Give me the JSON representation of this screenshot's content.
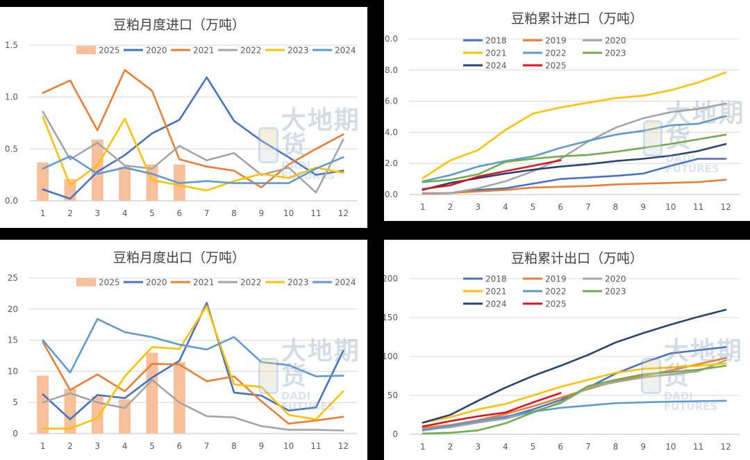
{
  "watermark": {
    "cn": "大地期货",
    "en": "DADI FUTURES"
  },
  "chart_data": [
    {
      "type": "bar+line",
      "title": "豆粕月度进口（万吨）",
      "categories": [
        "1",
        "2",
        "3",
        "4",
        "5",
        "6",
        "7",
        "8",
        "9",
        "10",
        "11",
        "12"
      ],
      "ylim": [
        0,
        1.5
      ],
      "yticks": [
        "0.0",
        "0.5",
        "1.0",
        "1.5"
      ],
      "legend_position": "top",
      "series": [
        {
          "name": "2025",
          "kind": "bar",
          "color": "#f7c09a",
          "values": [
            0.37,
            0.21,
            0.59,
            0.33,
            0.35,
            0.35,
            null,
            null,
            null,
            null,
            null,
            null
          ]
        },
        {
          "name": "2020",
          "kind": "line",
          "color": "#4472c4",
          "values": [
            0.11,
            0.02,
            0.28,
            0.44,
            0.65,
            0.78,
            1.19,
            0.77,
            0.58,
            0.42,
            0.25,
            0.29
          ]
        },
        {
          "name": "2021",
          "kind": "line",
          "color": "#ed7d31",
          "values": [
            1.04,
            1.16,
            0.68,
            1.26,
            1.06,
            0.4,
            0.33,
            0.29,
            0.13,
            0.35,
            0.5,
            0.64
          ]
        },
        {
          "name": "2022",
          "kind": "line",
          "color": "#a5a5a5",
          "values": [
            0.86,
            0.4,
            0.56,
            0.34,
            0.31,
            0.53,
            0.39,
            0.46,
            0.25,
            0.32,
            0.08,
            0.59
          ]
        },
        {
          "name": "2023",
          "kind": "line",
          "color": "#ffc000",
          "values": [
            0.81,
            0.15,
            0.34,
            0.79,
            0.2,
            0.15,
            0.1,
            0.19,
            0.26,
            0.22,
            0.32,
            0.27
          ]
        },
        {
          "name": "2024",
          "kind": "line",
          "color": "#5b9bd5",
          "values": [
            0.31,
            0.43,
            0.26,
            0.32,
            0.26,
            0.17,
            0.19,
            0.17,
            0.17,
            0.17,
            0.31,
            0.42
          ]
        }
      ]
    },
    {
      "type": "line",
      "title": "豆粕累计进口（万吨）",
      "categories": [
        "1",
        "2",
        "3",
        "4",
        "5",
        "6",
        "7",
        "8",
        "9",
        "10",
        "11",
        "12"
      ],
      "ylim": [
        0,
        10
      ],
      "yticks": [
        "0.0",
        "2.0",
        "4.0",
        "6.0",
        "8.0",
        "10.0"
      ],
      "legend_position": "top",
      "series": [
        {
          "name": "2018",
          "color": "#4472c4",
          "values": [
            0.05,
            0.1,
            0.3,
            0.4,
            0.7,
            1.0,
            1.1,
            1.2,
            1.35,
            1.85,
            2.3,
            2.3
          ]
        },
        {
          "name": "2019",
          "color": "#ed7d31",
          "values": [
            0.05,
            0.1,
            0.2,
            0.3,
            0.45,
            0.5,
            0.55,
            0.65,
            0.7,
            0.75,
            0.8,
            0.95
          ]
        },
        {
          "name": "2020",
          "color": "#a5a5a5",
          "values": [
            0.1,
            0.1,
            0.4,
            0.85,
            1.5,
            2.3,
            3.4,
            4.3,
            4.9,
            5.3,
            5.5,
            5.85
          ]
        },
        {
          "name": "2021",
          "color": "#ffc000",
          "values": [
            1.05,
            2.2,
            2.85,
            4.15,
            5.2,
            5.6,
            5.9,
            6.2,
            6.35,
            6.7,
            7.2,
            7.85
          ]
        },
        {
          "name": "2022",
          "color": "#5b9bd5",
          "values": [
            0.85,
            1.25,
            1.8,
            2.15,
            2.45,
            3.0,
            3.45,
            3.85,
            4.1,
            4.45,
            4.55,
            5.05
          ]
        },
        {
          "name": "2023",
          "color": "#70ad47",
          "values": [
            0.8,
            0.95,
            1.3,
            2.1,
            2.3,
            2.45,
            2.55,
            2.75,
            3.0,
            3.25,
            3.55,
            3.85
          ]
        },
        {
          "name": "2024",
          "color": "#264478",
          "values": [
            0.3,
            0.75,
            1.05,
            1.35,
            1.6,
            1.8,
            1.95,
            2.15,
            2.3,
            2.5,
            2.8,
            3.25
          ]
        },
        {
          "name": "2025",
          "color": "#e0141e",
          "values": [
            0.35,
            0.6,
            1.15,
            1.5,
            1.85,
            2.2,
            null,
            null,
            null,
            null,
            null,
            null
          ]
        }
      ]
    },
    {
      "type": "bar+line",
      "title": "豆粕月度出口（万吨）",
      "categories": [
        "1",
        "2",
        "3",
        "4",
        "5",
        "6",
        "7",
        "8",
        "9",
        "10",
        "11",
        "12"
      ],
      "ylim": [
        0,
        25
      ],
      "yticks": [
        "0",
        "5",
        "10",
        "15",
        "20",
        "25"
      ],
      "legend_position": "top",
      "series": [
        {
          "name": "2025",
          "kind": "bar",
          "color": "#f7c09a",
          "values": [
            9.3,
            7.2,
            6.0,
            5.5,
            13.0,
            11.5,
            null,
            null,
            null,
            null,
            null,
            null
          ]
        },
        {
          "name": "2020",
          "kind": "line",
          "color": "#4472c4",
          "values": [
            6.3,
            2.3,
            6.2,
            5.7,
            9.0,
            11.7,
            21.0,
            6.6,
            6.1,
            3.7,
            4.2,
            13.3
          ]
        },
        {
          "name": "2021",
          "kind": "line",
          "color": "#ed7d31",
          "values": [
            14.7,
            7.0,
            9.5,
            6.8,
            11.2,
            11.1,
            8.4,
            9.2,
            5.2,
            1.6,
            2.1,
            2.7
          ]
        },
        {
          "name": "2022",
          "kind": "line",
          "color": "#a5a5a5",
          "values": [
            5.0,
            6.5,
            5.0,
            4.1,
            8.6,
            5.0,
            2.8,
            2.6,
            1.2,
            0.6,
            0.6,
            0.5
          ]
        },
        {
          "name": "2023",
          "kind": "line",
          "color": "#ffc000",
          "values": [
            0.8,
            0.8,
            2.5,
            9.2,
            13.9,
            13.6,
            20.5,
            7.9,
            7.5,
            3.0,
            2.3,
            6.8
          ]
        },
        {
          "name": "2024",
          "kind": "line",
          "color": "#5b9bd5",
          "values": [
            15.0,
            9.8,
            18.4,
            16.3,
            15.5,
            14.3,
            13.5,
            15.5,
            11.5,
            11.0,
            9.2,
            9.3
          ]
        }
      ]
    },
    {
      "type": "line",
      "title": "豆粕累计出口（万吨）",
      "categories": [
        "1",
        "2",
        "3",
        "4",
        "5",
        "6",
        "7",
        "8",
        "9",
        "10",
        "11",
        "12"
      ],
      "ylim": [
        0,
        200
      ],
      "yticks": [
        "0",
        "50",
        "100",
        "150",
        "200"
      ],
      "legend_position": "top",
      "series": [
        {
          "name": "2018",
          "color": "#4472c4",
          "values": [
            5,
            10,
            16,
            22,
            32,
            44,
            60,
            78,
            92,
            104,
            108,
            112
          ]
        },
        {
          "name": "2019",
          "color": "#ed7d31",
          "values": [
            8,
            12,
            18,
            26,
            36,
            47,
            58,
            68,
            75,
            82,
            90,
            98
          ]
        },
        {
          "name": "2020",
          "color": "#a5a5a5",
          "values": [
            6,
            9,
            15,
            20,
            29,
            40,
            60,
            67,
            73,
            77,
            81,
            95
          ]
        },
        {
          "name": "2021",
          "color": "#ffc000",
          "values": [
            15,
            22,
            32,
            39,
            50,
            61,
            70,
            79,
            84,
            86,
            88,
            91
          ]
        },
        {
          "name": "2022",
          "color": "#5b9bd5",
          "values": [
            5,
            11,
            17,
            23,
            29,
            34,
            37,
            40,
            41,
            42,
            42.5,
            43
          ]
        },
        {
          "name": "2023",
          "color": "#70ad47",
          "values": [
            1,
            2,
            5,
            14,
            28,
            41,
            62,
            70,
            77,
            80,
            83,
            88
          ]
        },
        {
          "name": "2024",
          "color": "#264478",
          "values": [
            15,
            25,
            43,
            60,
            75,
            88,
            102,
            118,
            130,
            141,
            151,
            160
          ]
        },
        {
          "name": "2025",
          "color": "#e0141e",
          "values": [
            10,
            17,
            23,
            28,
            41,
            53,
            null,
            null,
            null,
            null,
            null,
            null
          ]
        }
      ]
    }
  ]
}
